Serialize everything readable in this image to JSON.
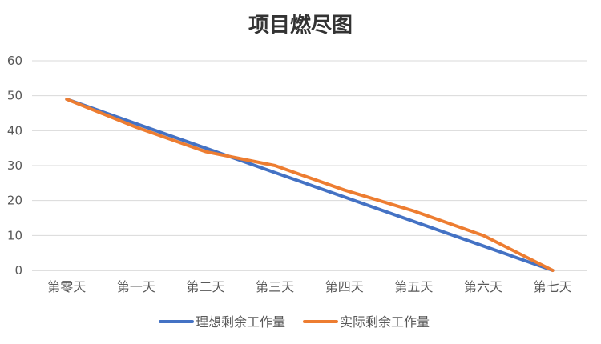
{
  "chart_data": {
    "type": "line",
    "title": "项目燃尽图",
    "xlabel": "",
    "ylabel": "",
    "ylim": [
      0,
      60
    ],
    "yticks": [
      0,
      10,
      20,
      30,
      40,
      50,
      60
    ],
    "grid": true,
    "legend_position": "bottom",
    "categories": [
      "第零天",
      "第一天",
      "第二天",
      "第三天",
      "第四天",
      "第五天",
      "第六天",
      "第七天"
    ],
    "series": [
      {
        "name": "理想剩余工作量",
        "color": "#4472C4",
        "values": [
          49,
          42,
          35,
          28,
          21,
          14,
          7,
          0
        ]
      },
      {
        "name": "实际剩余工作量",
        "color": "#ED7D31",
        "values": [
          49,
          41,
          34,
          30,
          23,
          17,
          10,
          0
        ]
      }
    ]
  }
}
